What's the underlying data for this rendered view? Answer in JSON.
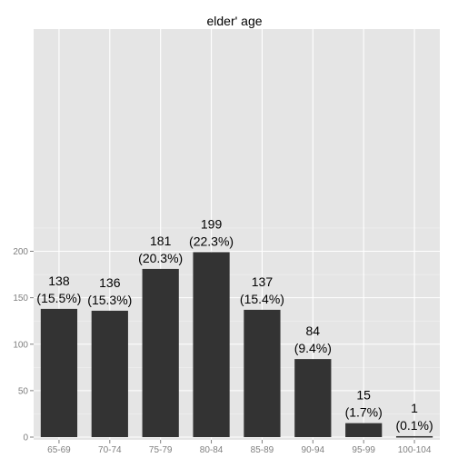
{
  "chart_data": {
    "type": "bar",
    "title": "elder' age",
    "xlabel": "",
    "ylabel": "",
    "categories": [
      "65-69",
      "70-74",
      "75-79",
      "80-84",
      "85-89",
      "90-94",
      "95-99",
      "100-104"
    ],
    "values": [
      138,
      136,
      181,
      199,
      137,
      84,
      15,
      1
    ],
    "value_labels": [
      "138",
      "136",
      "181",
      "199",
      "137",
      "84",
      "15",
      "1"
    ],
    "percent_labels": [
      "(15.5%)",
      "(15.3%)",
      "(20.3%)",
      "(22.3%)",
      "(15.4%)",
      "(9.4%)",
      "(1.7%)",
      "(0.1%)"
    ],
    "yticks": [
      0,
      50,
      100,
      150,
      200
    ],
    "ytick_labels": [
      "0",
      "50",
      "100",
      "150",
      "200"
    ],
    "ylim": [
      0,
      220
    ],
    "grid": true,
    "legend": "none",
    "colors": {
      "panel": "#e5e5e5",
      "bar": "#333333",
      "grid_major": "#ffffff",
      "grid_minor": "#f2f2f2",
      "tick_text": "#7f7f7f"
    }
  }
}
